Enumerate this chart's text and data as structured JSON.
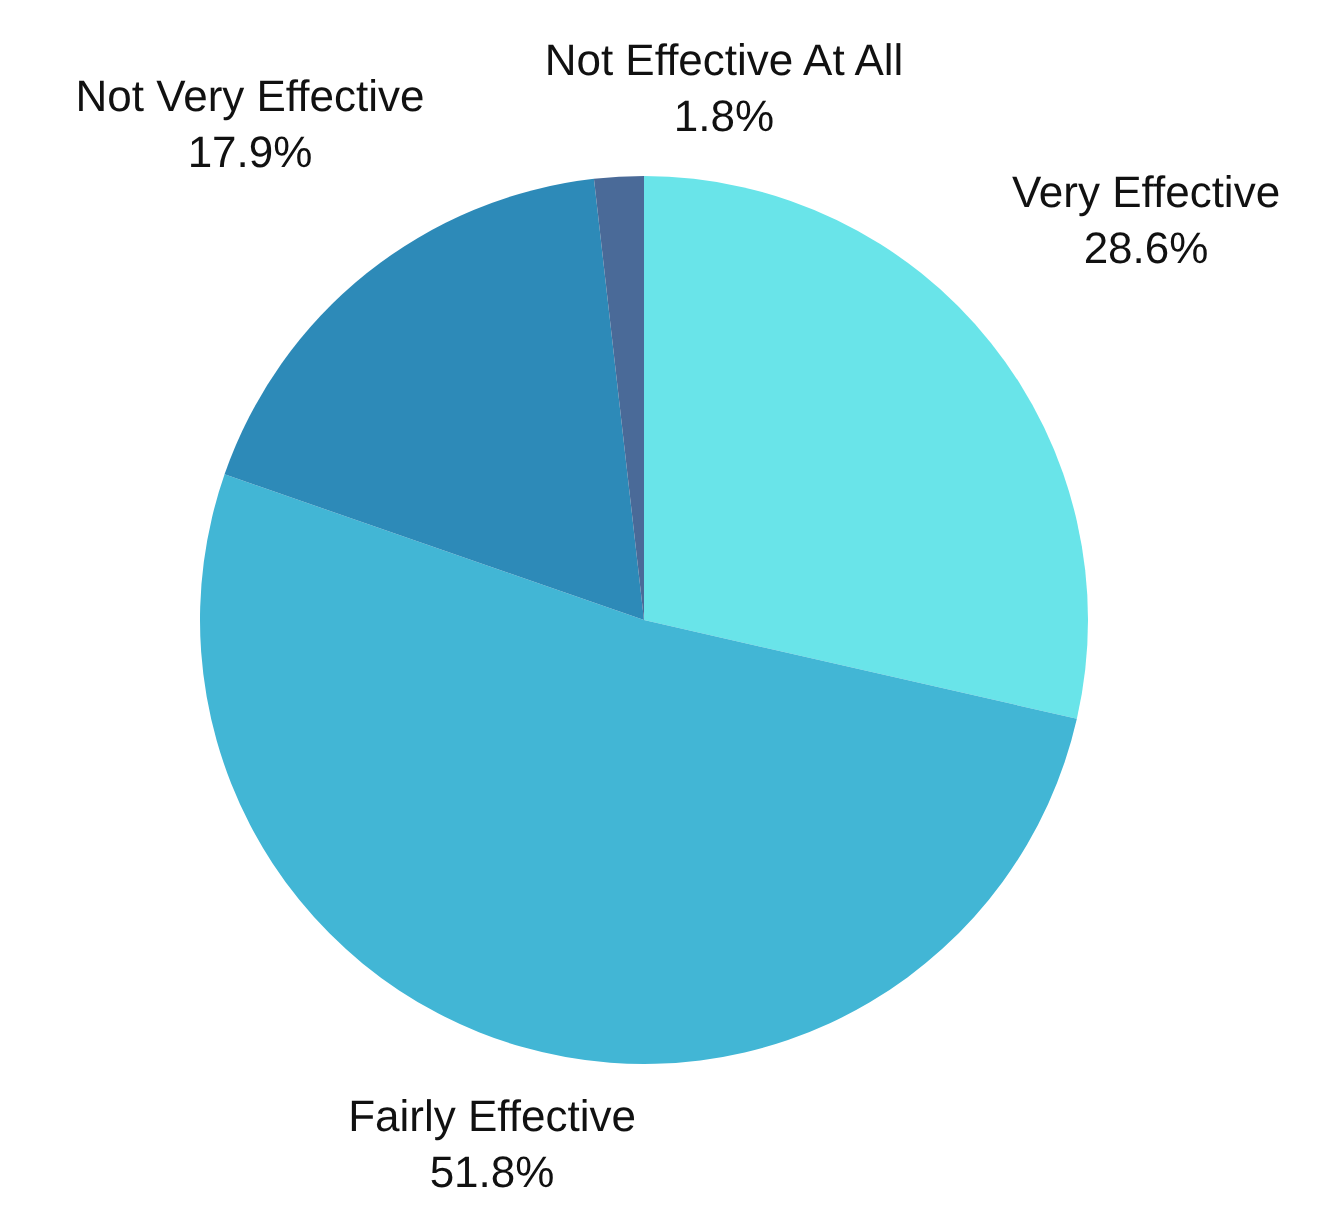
{
  "chart_data": {
    "type": "pie",
    "categories": [
      "Very Effective",
      "Fairly Effective",
      "Not Very Effective",
      "Not Effective At All"
    ],
    "values": [
      28.6,
      51.8,
      17.9,
      1.8
    ],
    "value_labels": [
      "28.6%",
      "51.8%",
      "17.9%",
      "1.8%"
    ],
    "colors": [
      "#69e4e9",
      "#42b6d5",
      "#2d8ab8",
      "#4a6a98"
    ],
    "legend": false
  }
}
